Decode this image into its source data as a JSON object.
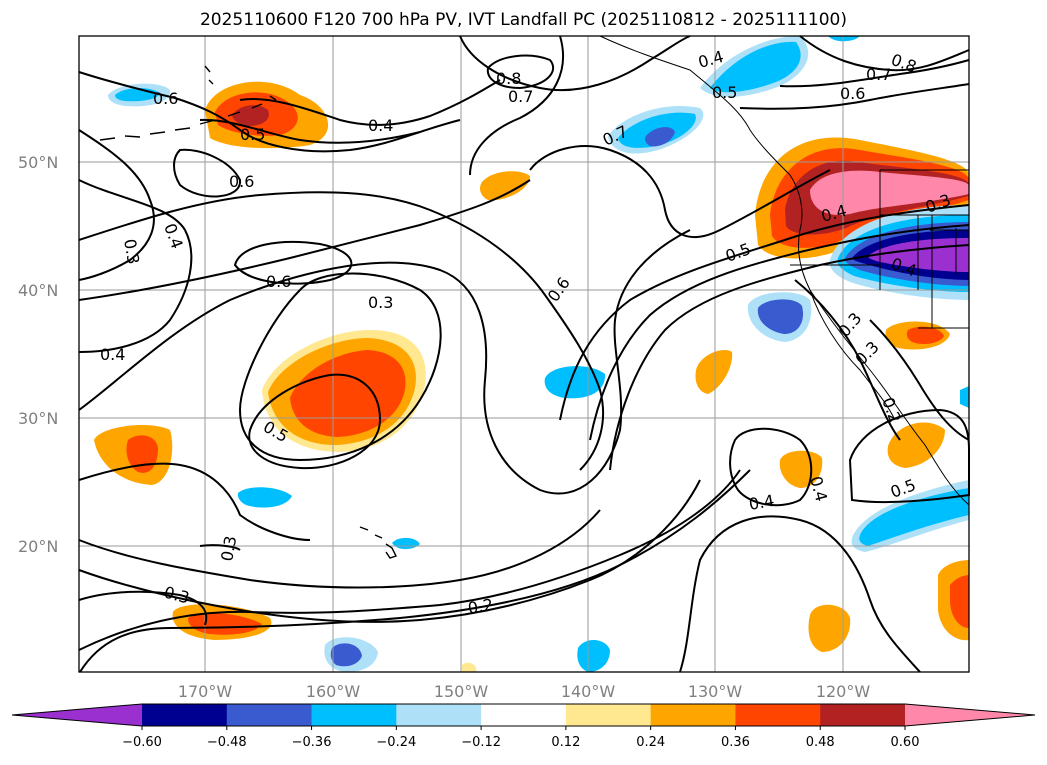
{
  "title": "2025110600 F120 700 hPa PV, IVT Landfall PC (2025110812 - 2025111100)",
  "map": {
    "lat_labels": [
      "50°N",
      "40°N",
      "30°N",
      "20°N"
    ],
    "lon_labels": [
      "170°W",
      "160°W",
      "150°W",
      "140°W",
      "130°W",
      "120°W"
    ],
    "contour_labels": [
      "0.6",
      "0.5",
      "0.4",
      "0.6",
      "0.3",
      "0.4",
      "0.6",
      "0.4",
      "0.3",
      "0.5",
      "0.8",
      "0.7",
      "0.7",
      "0.4",
      "0.5",
      "0.8",
      "0.7",
      "0.6",
      "0.6",
      "0.5",
      "0.4",
      "0.3",
      "0.3",
      "0.4",
      "0.2",
      "0.3",
      "0.5",
      "0.4",
      "0.3",
      "0.3",
      "0.2",
      "0.4"
    ]
  },
  "colorbar": {
    "colors": [
      "#9b30d0",
      "#000090",
      "#3a5bd0",
      "#00bfff",
      "#aee0f8",
      "#ffffff",
      "#ffe890",
      "#ffa500",
      "#ff4500",
      "#b22222",
      "#ff88aa"
    ],
    "tick_labels": [
      "−0.60",
      "−0.48",
      "−0.36",
      "−0.24",
      "−0.12",
      "0.12",
      "0.24",
      "0.36",
      "0.48",
      "0.60"
    ]
  }
}
